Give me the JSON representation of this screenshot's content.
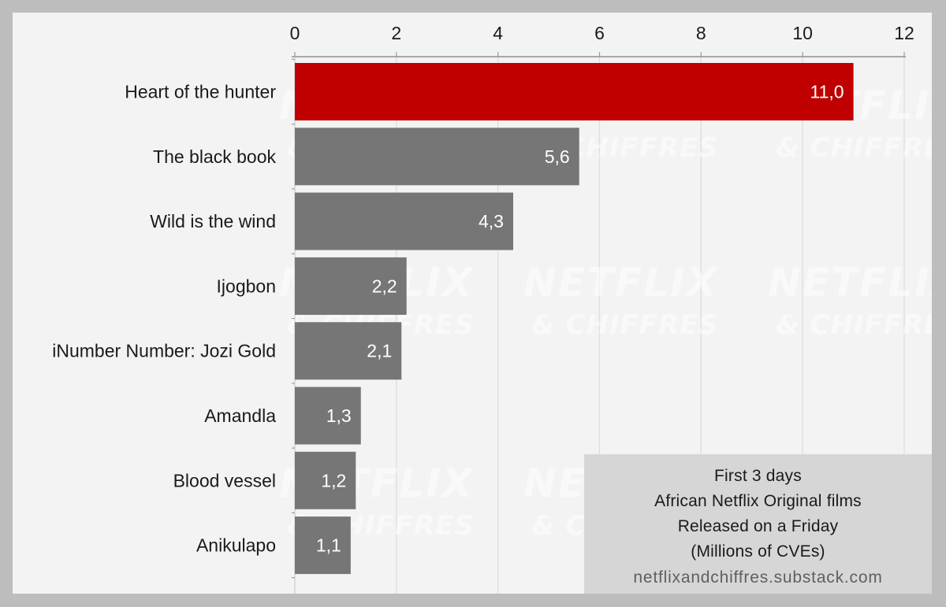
{
  "chart_data": {
    "type": "bar",
    "orientation": "horizontal",
    "categories": [
      "Heart of the hunter",
      "The black book",
      "Wild is the wind",
      "Ijogbon",
      "iNumber Number: Jozi Gold",
      "Amandla",
      "Blood vessel",
      "Anikulapo"
    ],
    "values": [
      11.0,
      5.6,
      4.3,
      2.2,
      2.1,
      1.3,
      1.2,
      1.1
    ],
    "value_labels": [
      "11,0",
      "5,6",
      "4,3",
      "2,2",
      "2,1",
      "1,3",
      "1,2",
      "1,1"
    ],
    "xlim": [
      0,
      12
    ],
    "x_ticks": [
      "0",
      "2",
      "4",
      "6",
      "8",
      "10",
      "12"
    ],
    "x_axis_position": "top",
    "grid": true,
    "title": "",
    "xlabel": "",
    "ylabel": "",
    "bar_colors": [
      "#c00000",
      "#767676",
      "#767676",
      "#767676",
      "#767676",
      "#767676",
      "#767676",
      "#767676"
    ],
    "highlight_color": "#c00000",
    "bar_color": "#767676"
  },
  "note": {
    "lines": [
      "First 3 days",
      "African Netflix Original films",
      "Released on a Friday",
      "(Millions of CVEs)"
    ],
    "url": "netflixandchiffres.substack.com"
  },
  "watermark": {
    "line1": "NETFLIX",
    "line2": "& CHIFFRES"
  }
}
